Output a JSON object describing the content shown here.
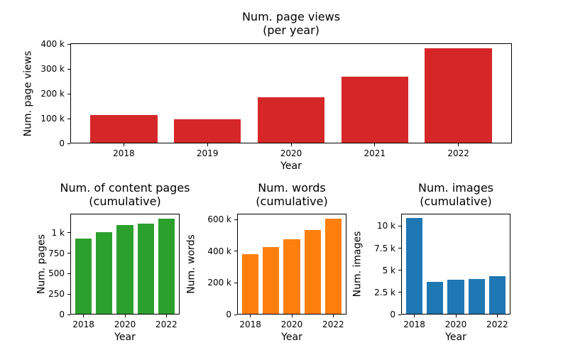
{
  "figure": {
    "background": "#ffffff",
    "text_color": "#000000"
  },
  "chart_data": [
    {
      "id": "page_views",
      "type": "bar",
      "title_lines": [
        "Num. page views",
        "(per year)"
      ],
      "xlabel": "Year",
      "ylabel": "Num. page views",
      "bar_color": "#d62728",
      "categories": [
        "2018",
        "2019",
        "2020",
        "2021",
        "2022"
      ],
      "values": [
        115000,
        98000,
        187000,
        269000,
        385000
      ],
      "ylim": [
        0,
        404000
      ],
      "yticks": [
        {
          "value": 0,
          "label": "0"
        },
        {
          "value": 100000,
          "label": "100 k"
        },
        {
          "value": 200000,
          "label": "200 k"
        },
        {
          "value": 300000,
          "label": "300 k"
        },
        {
          "value": 400000,
          "label": "400 k"
        }
      ],
      "xtick_indices": [
        0,
        1,
        2,
        3,
        4
      ],
      "grid": false,
      "legend": null
    },
    {
      "id": "pages",
      "type": "bar",
      "title_lines": [
        "Num. of content pages",
        "(cumulative)"
      ],
      "xlabel": "Year",
      "ylabel": "Num. pages",
      "bar_color": "#2ca02c",
      "categories": [
        "2018",
        "2019",
        "2020",
        "2021",
        "2022"
      ],
      "values": [
        930,
        1005,
        1095,
        1110,
        1175
      ],
      "ylim": [
        0,
        1234
      ],
      "yticks": [
        {
          "value": 0,
          "label": "0"
        },
        {
          "value": 250,
          "label": "250"
        },
        {
          "value": 500,
          "label": "500"
        },
        {
          "value": 750,
          "label": "750"
        },
        {
          "value": 1000,
          "label": "1 k"
        }
      ],
      "xtick_indices": [
        0,
        2,
        4
      ],
      "grid": false,
      "legend": null
    },
    {
      "id": "words",
      "type": "bar",
      "title_lines": [
        "Num. words",
        "(cumulative)"
      ],
      "xlabel": "Year",
      "ylabel": "Num. words",
      "bar_color": "#ff7f0e",
      "categories": [
        "2018",
        "2019",
        "2020",
        "2021",
        "2022"
      ],
      "values": [
        380000,
        425000,
        475000,
        534000,
        606000
      ],
      "ylim": [
        0,
        636000
      ],
      "yticks": [
        {
          "value": 0,
          "label": "0"
        },
        {
          "value": 200000,
          "label": "200 k"
        },
        {
          "value": 400000,
          "label": "400 k"
        },
        {
          "value": 600000,
          "label": "600 k"
        }
      ],
      "xtick_indices": [
        0,
        2,
        4
      ],
      "grid": false,
      "legend": null
    },
    {
      "id": "images",
      "type": "bar",
      "title_lines": [
        "Num. images",
        "(cumulative)"
      ],
      "xlabel": "Year",
      "ylabel": "Num. images",
      "bar_color": "#1f77b4",
      "categories": [
        "2018",
        "2019",
        "2020",
        "2021",
        "2022"
      ],
      "values": [
        10900,
        3700,
        3900,
        4050,
        4300
      ],
      "ylim": [
        0,
        11400
      ],
      "yticks": [
        {
          "value": 0,
          "label": "0"
        },
        {
          "value": 2500,
          "label": "2.5 k"
        },
        {
          "value": 5000,
          "label": "5 k"
        },
        {
          "value": 7500,
          "label": "7.5 k"
        },
        {
          "value": 10000,
          "label": "10 k"
        }
      ],
      "xtick_indices": [
        0,
        2,
        4
      ],
      "grid": false,
      "legend": null
    }
  ]
}
